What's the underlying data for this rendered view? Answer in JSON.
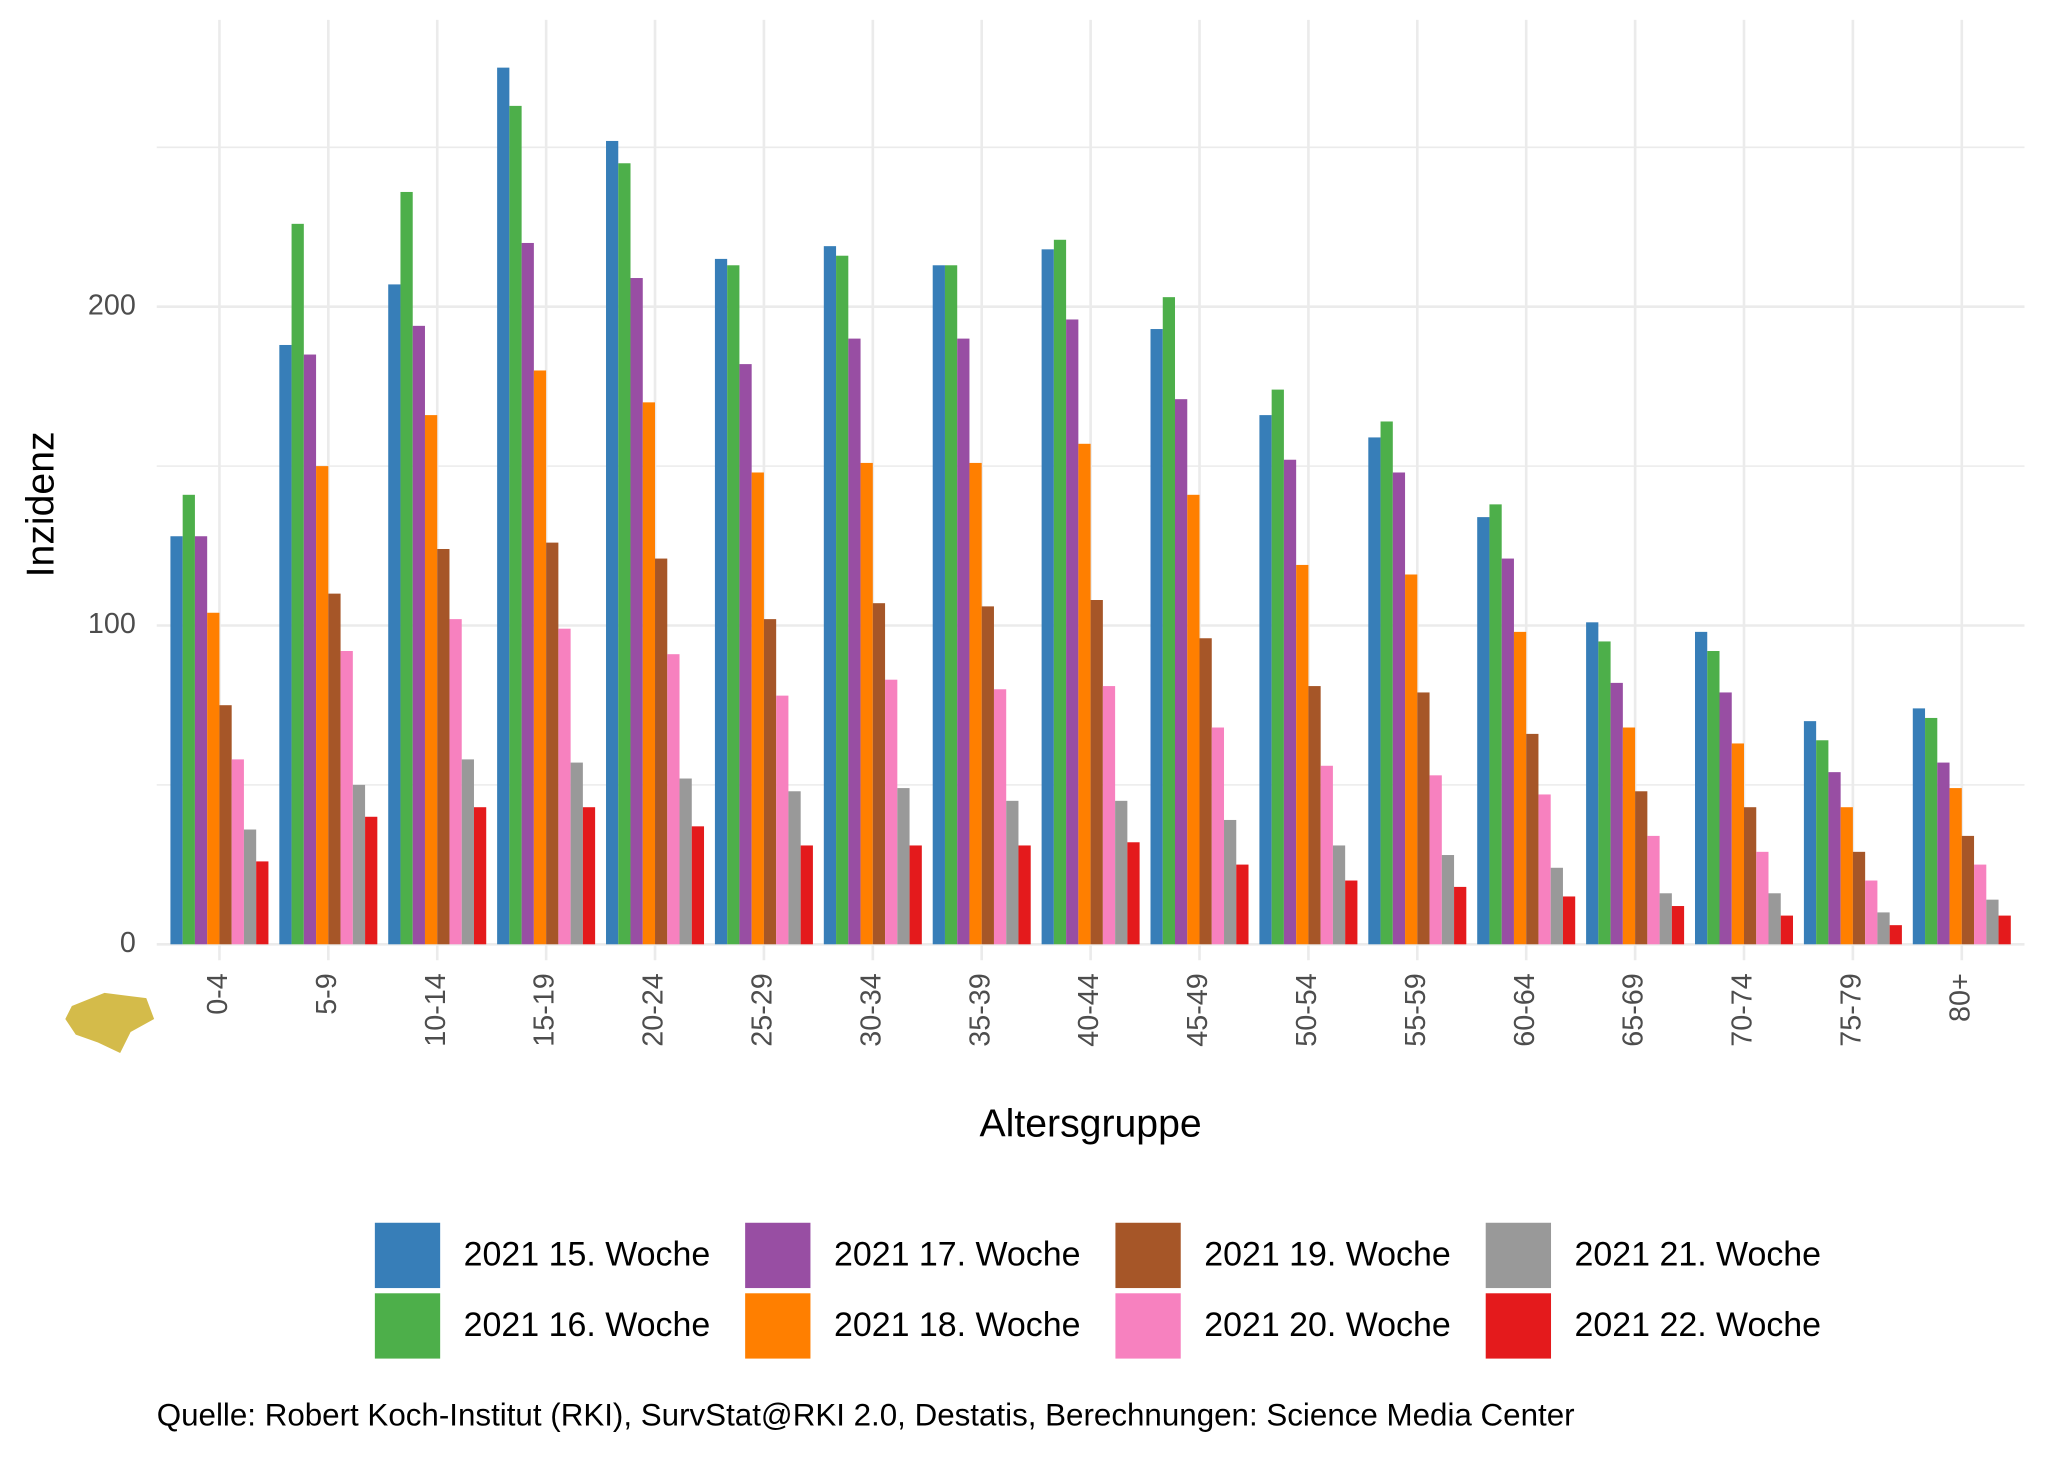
{
  "chart_data": {
    "type": "bar",
    "x_label": "Altersgruppe",
    "y_label": "Inzidenz",
    "caption": "Quelle: Robert Koch-Institut (RKI), SurvStat@RKI 2.0, Destatis, Berechnungen: Science Media Center",
    "categories": [
      "0-4",
      "5-9",
      "10-14",
      "15-19",
      "20-24",
      "25-29",
      "30-34",
      "35-39",
      "40-44",
      "45-49",
      "50-54",
      "55-59",
      "60-64",
      "65-69",
      "70-74",
      "75-79",
      "80+"
    ],
    "series": [
      {
        "name": "2021 15. Woche",
        "color": "#377eb8",
        "values": [
          128,
          188,
          207,
          275,
          252,
          215,
          219,
          213,
          218,
          193,
          166,
          159,
          134,
          101,
          98,
          70,
          74
        ]
      },
      {
        "name": "2021 16. Woche",
        "color": "#4daf4a",
        "values": [
          141,
          226,
          236,
          263,
          245,
          213,
          216,
          213,
          221,
          203,
          174,
          164,
          138,
          95,
          92,
          64,
          71
        ]
      },
      {
        "name": "2021 17. Woche",
        "color": "#984ea3",
        "values": [
          128,
          185,
          194,
          220,
          209,
          182,
          190,
          190,
          196,
          171,
          152,
          148,
          121,
          82,
          79,
          54,
          57
        ]
      },
      {
        "name": "2021 18. Woche",
        "color": "#ff7f00",
        "values": [
          104,
          150,
          166,
          180,
          170,
          148,
          151,
          151,
          157,
          141,
          119,
          116,
          98,
          68,
          63,
          43,
          49
        ]
      },
      {
        "name": "2021 19. Woche",
        "color": "#a65628",
        "values": [
          75,
          110,
          124,
          126,
          121,
          102,
          107,
          106,
          108,
          96,
          81,
          79,
          66,
          48,
          43,
          29,
          34
        ]
      },
      {
        "name": "2021 20. Woche",
        "color": "#f781bf",
        "values": [
          58,
          92,
          102,
          99,
          91,
          78,
          83,
          80,
          81,
          68,
          56,
          53,
          47,
          34,
          29,
          20,
          25
        ]
      },
      {
        "name": "2021 21. Woche",
        "color": "#999999",
        "values": [
          36,
          50,
          58,
          57,
          52,
          48,
          49,
          45,
          45,
          39,
          31,
          28,
          24,
          16,
          16,
          10,
          14
        ]
      },
      {
        "name": "2021 22. Woche",
        "color": "#e41a1c",
        "values": [
          26,
          40,
          43,
          43,
          37,
          31,
          31,
          31,
          32,
          25,
          20,
          18,
          15,
          12,
          9,
          6,
          9
        ]
      }
    ],
    "ylim": [
      -5,
      290
    ],
    "yticks": [
      0,
      100,
      200
    ],
    "minor_gridlines": [
      50,
      150,
      250
    ],
    "grid": true
  }
}
